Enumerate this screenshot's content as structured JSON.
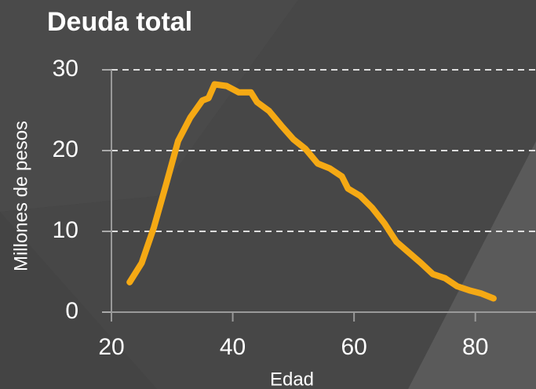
{
  "chart_data": {
    "type": "line",
    "title": "Deuda total",
    "x_label": "Edad",
    "y_label": "Millones de pesos",
    "x": [
      23,
      25,
      27,
      29,
      31,
      33,
      35,
      36,
      37,
      39,
      41,
      43,
      44,
      46,
      48,
      50,
      52,
      54,
      56,
      58,
      59,
      61,
      63,
      65,
      67,
      69,
      71,
      73,
      75,
      77,
      79,
      81,
      83
    ],
    "series": [
      {
        "name": "Deuda total",
        "color": "#f5a914",
        "values": [
          3.7,
          6.1,
          10.5,
          15.8,
          21.2,
          24.1,
          26.2,
          26.5,
          28.2,
          28.0,
          27.2,
          27.2,
          26.0,
          24.9,
          23.1,
          21.4,
          20.2,
          18.4,
          17.8,
          16.8,
          15.3,
          14.4,
          12.9,
          11.0,
          8.7,
          7.4,
          6.1,
          4.7,
          4.2,
          3.2,
          2.7,
          2.3,
          1.7
        ]
      }
    ],
    "xlim": [
      20,
      90
    ],
    "xticks": [
      20,
      40,
      60,
      80
    ],
    "ylim": [
      0,
      30
    ],
    "yticks": [
      0,
      10,
      20,
      30
    ],
    "grid": true
  }
}
